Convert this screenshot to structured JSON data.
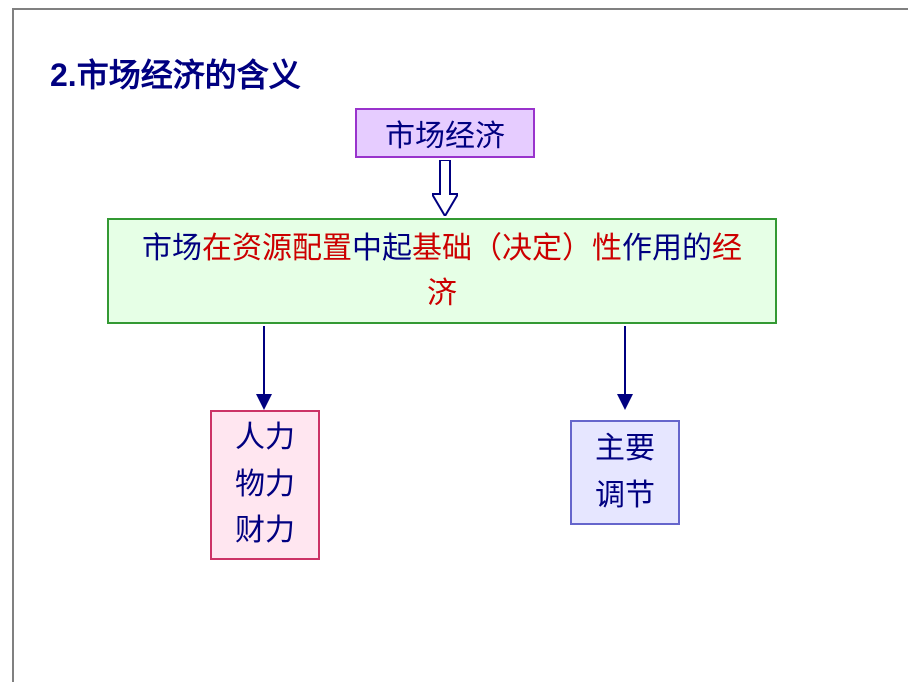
{
  "title": "2.市场经济的含义",
  "colors": {
    "frame_border": "#808080",
    "title_color": "#000080",
    "arrow_color": "#000080"
  },
  "top_box": {
    "text": "市场经济",
    "bg": "#e6ccff",
    "border": "#9933cc",
    "text_color": "#000080",
    "fontsize": 30
  },
  "mid_box": {
    "bg": "#e6ffe6",
    "border": "#339933",
    "fontsize": 30,
    "segments": [
      {
        "text": "市场",
        "color": "#000080"
      },
      {
        "text": "在",
        "color": "#cc0000"
      },
      {
        "text": "资源配置",
        "color": "#cc0000"
      },
      {
        "text": "中起",
        "color": "#000080"
      },
      {
        "text": "基础（决定）性",
        "color": "#cc0000"
      },
      {
        "text": "作用的",
        "color": "#000080"
      },
      {
        "text": "经济",
        "color": "#cc0000"
      }
    ]
  },
  "left_box": {
    "lines": [
      "人力",
      "物力",
      "财力"
    ],
    "bg": "#ffe6f0",
    "border": "#cc3366",
    "text_color": "#000080",
    "fontsize": 30
  },
  "right_box": {
    "lines": [
      "主要",
      "调节"
    ],
    "bg": "#e6e6ff",
    "border": "#6666cc",
    "text_color": "#000080",
    "fontsize": 30
  }
}
